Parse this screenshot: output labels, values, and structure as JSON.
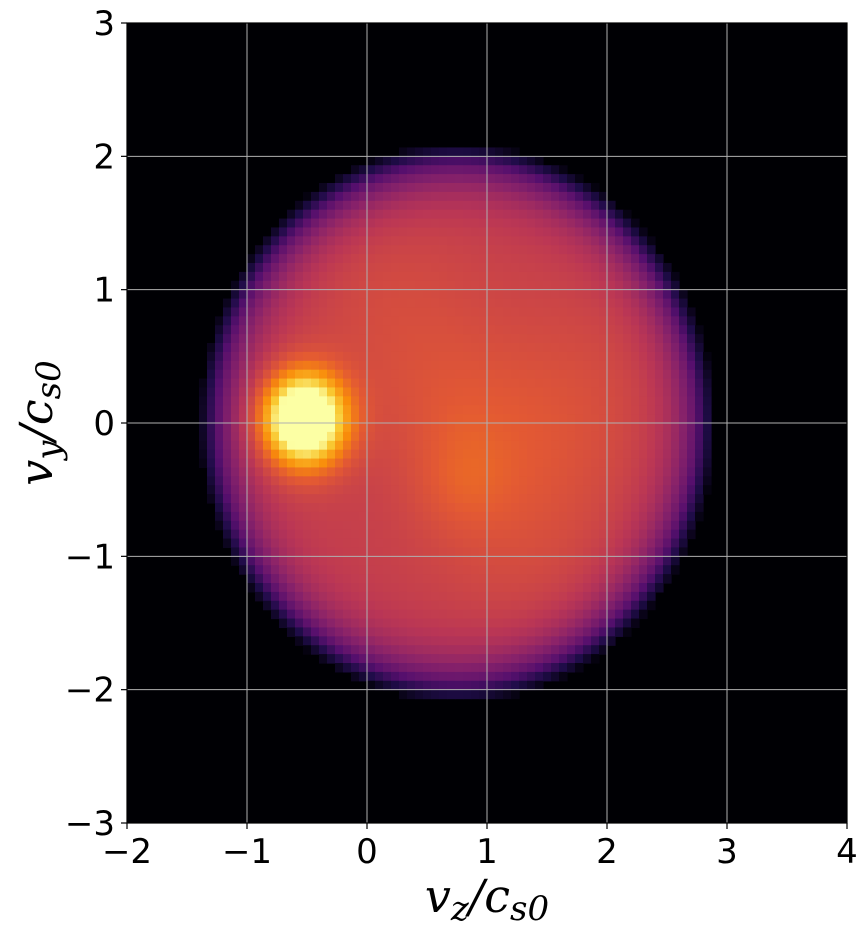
{
  "chart_data": {
    "type": "heatmap",
    "title": "",
    "colormap": "inferno",
    "background_color": "#000004",
    "grid": true,
    "grid_color": "#b0b0b0",
    "xlim": [
      -2,
      4
    ],
    "ylim": [
      -3,
      3
    ],
    "x_ticks": [
      -2,
      -1,
      0,
      1,
      2,
      3,
      4
    ],
    "y_ticks": [
      -3,
      -2,
      -1,
      0,
      1,
      2,
      3
    ],
    "x_tick_labels": [
      "−2",
      "−1",
      "0",
      "1",
      "2",
      "3",
      "4"
    ],
    "y_tick_labels": [
      "−3",
      "−2",
      "−1",
      "0",
      "1",
      "2",
      "3"
    ],
    "xlabel": {
      "base": "v",
      "sub_1": "z",
      "sep": "/c",
      "sub_2": "s0"
    },
    "ylabel": {
      "base": "v",
      "sub_1": "y",
      "sep": "/c",
      "sub_2": "s0"
    },
    "distribution": {
      "shell_center": [
        0.75,
        0.0
      ],
      "shell_radius_x": 2.0,
      "shell_radius_y": 1.95,
      "shell_intensity": 0.56,
      "hotspot_center": [
        -0.52,
        0.03
      ],
      "hotspot_radius": 0.42,
      "hotspot_intensity": 1.0
    }
  }
}
